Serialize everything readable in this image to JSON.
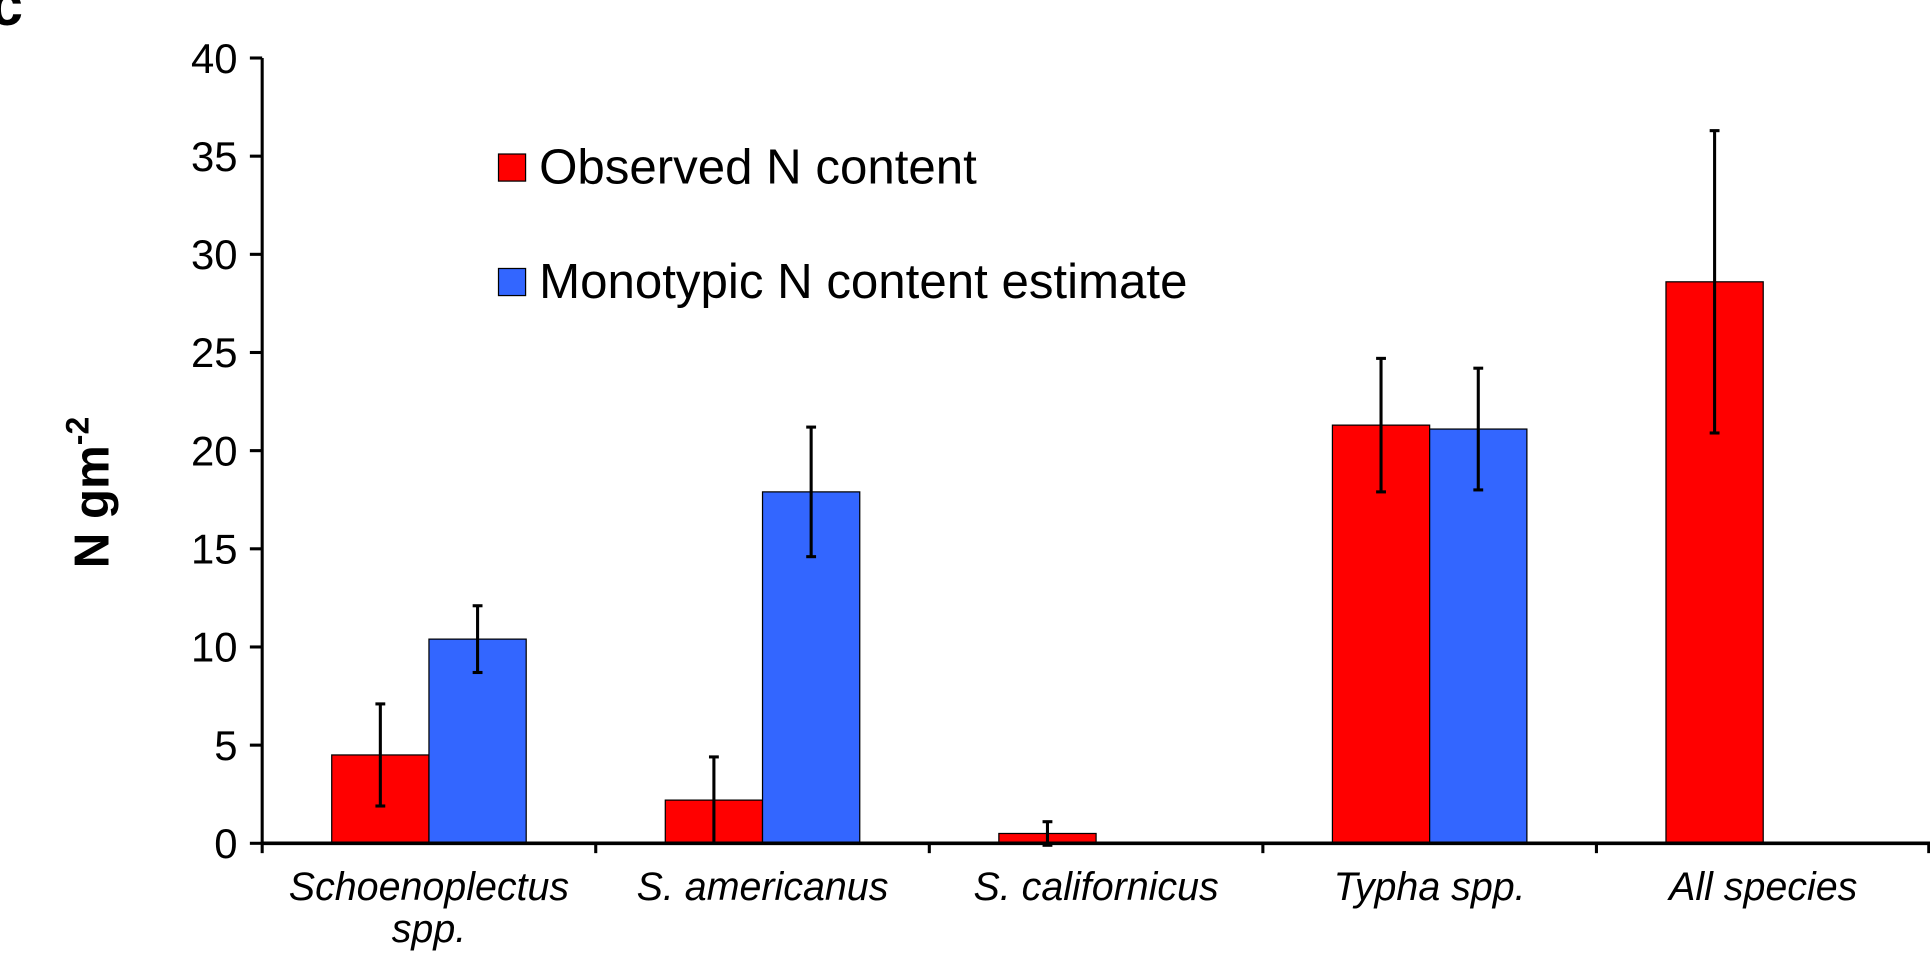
{
  "chart_data": {
    "type": "bar",
    "panel_label": "c",
    "y_label": {
      "text": "N gm",
      "superscript": "-2"
    },
    "categories": [
      "Schoenoplectus spp.",
      "S. americanus",
      "S. californicus",
      "Typha spp.",
      "All species"
    ],
    "series": [
      {
        "name": "Observed N content",
        "color": "#ff0000",
        "values": [
          4.5,
          2.2,
          0.5,
          21.3,
          28.6
        ],
        "errors": [
          2.6,
          2.2,
          0.6,
          3.4,
          7.7
        ]
      },
      {
        "name": "Monotypic N content estimate",
        "color": "#3366ff",
        "values": [
          10.4,
          17.9,
          null,
          21.1,
          null
        ],
        "errors": [
          1.7,
          3.3,
          null,
          3.1,
          null
        ]
      }
    ],
    "ylim": [
      0,
      40
    ],
    "yticks": [
      0,
      5,
      10,
      15,
      20,
      25,
      30,
      35,
      40
    ],
    "grid": false
  }
}
